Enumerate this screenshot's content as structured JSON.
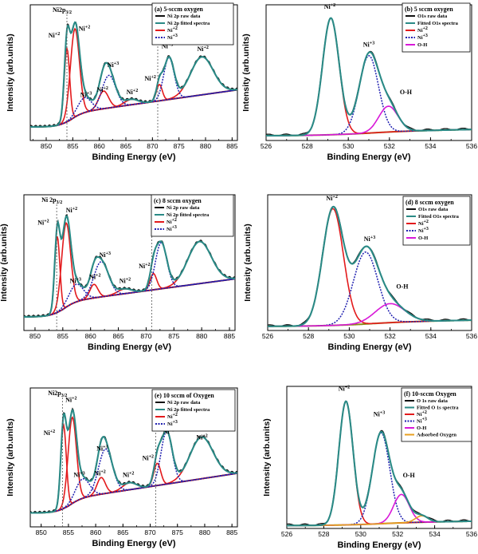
{
  "colors": {
    "raw": "#111111",
    "fit": "#2a8a86",
    "ni2": "#e31a1c",
    "ni3": "#1f1fb0",
    "oh": "#d818d8",
    "bg": "#8c8a1a",
    "ads": "#e8a020"
  },
  "chart_data": [
    {
      "id": "a",
      "type": "line",
      "kind": "ni",
      "xlabel": "Binding Energy (eV)",
      "ylabel": "Intensity (arb.units)",
      "xlim": [
        847,
        886
      ],
      "ylim": [
        0,
        10
      ],
      "ticks": [
        850,
        855,
        860,
        865,
        870,
        875,
        880,
        885
      ],
      "legend_title": "(a) 5-sccm oxygen",
      "legend": [
        "Ni 2p raw data",
        "Ni 2p fitted spectra",
        "Ni+2",
        "Ni+3"
      ],
      "marker_labels": [
        {
          "x": 853.9,
          "text": "Ni2p3/2"
        },
        {
          "x": 871.0,
          "text": "Ni2p1/2"
        }
      ],
      "annotations": [
        {
          "x": 851.5,
          "y": 7.6,
          "text": "Ni+2"
        },
        {
          "x": 857.2,
          "y": 8.1,
          "text": "Ni+2"
        },
        {
          "x": 857.5,
          "y": 3.2,
          "text": "Ni+3"
        },
        {
          "x": 860.6,
          "y": 3.6,
          "text": "Ni+2"
        },
        {
          "x": 862.6,
          "y": 5.4,
          "text": "Ni+3"
        },
        {
          "x": 866.2,
          "y": 3.4,
          "text": "Ni+2"
        },
        {
          "x": 869.6,
          "y": 4.4,
          "text": "Ni+2"
        },
        {
          "x": 872.8,
          "y": 6.8,
          "text": "Ni+3"
        },
        {
          "x": 879.5,
          "y": 6.6,
          "text": "Ni+2"
        }
      ],
      "background": {
        "start": 1.0,
        "step": 1.0,
        "x0": 854.5,
        "slope": 0.055
      },
      "ni2_peaks": [
        {
          "center": 853.9,
          "height": 5.4,
          "fwhm": 1.2
        },
        {
          "center": 855.4,
          "height": 6.5,
          "fwhm": 2.0
        },
        {
          "center": 860.8,
          "height": 1.3,
          "fwhm": 2.2
        },
        {
          "center": 866.0,
          "height": 0.4,
          "fwhm": 3.0
        },
        {
          "center": 871.3,
          "height": 1.2,
          "fwhm": 1.3
        },
        {
          "center": 879.3,
          "height": 2.8,
          "fwhm": 5.0
        }
      ],
      "ni3_peaks": [
        {
          "center": 857.2,
          "height": 1.1,
          "fwhm": 3.0
        },
        {
          "center": 861.8,
          "height": 2.4,
          "fwhm": 3.0
        },
        {
          "center": 873.1,
          "height": 3.1,
          "fwhm": 2.3
        }
      ]
    },
    {
      "id": "b",
      "type": "line",
      "kind": "o",
      "xlabel": "Binding Energy (eV)",
      "ylabel": "Intensity (arb.units)",
      "xlim": [
        526,
        536
      ],
      "ylim": [
        0,
        10
      ],
      "ticks": [
        526,
        528,
        530,
        532,
        534,
        536
      ],
      "legend_title": "(b) 5 sccm oxygen",
      "legend": [
        "O1s raw data",
        "Fitted O1s spectra",
        "Ni+2",
        "Ni+3",
        "O-H"
      ],
      "annotations": [
        {
          "x": 529.1,
          "y": 9.7,
          "text": "Ni+2"
        },
        {
          "x": 531.0,
          "y": 6.9,
          "text": "Ni+3"
        },
        {
          "x": 532.8,
          "y": 3.4,
          "text": "O-H"
        }
      ],
      "background": {
        "start": 0.35,
        "step": 0.3,
        "x0": 530.5,
        "slope": 0.03
      },
      "ni2_peaks": [
        {
          "center": 529.15,
          "height": 8.6,
          "fwhm": 0.95
        }
      ],
      "ni3_peaks": [
        {
          "center": 531.0,
          "height": 5.7,
          "fwhm": 1.1
        }
      ],
      "oh_peaks": [
        {
          "center": 531.95,
          "height": 1.9,
          "fwhm": 1.1
        }
      ]
    },
    {
      "id": "c",
      "type": "line",
      "kind": "ni",
      "xlabel": "Binding Energy (eV)",
      "ylabel": "Intensity (arb.units)",
      "xlim": [
        848,
        886
      ],
      "ylim": [
        0,
        10
      ],
      "ticks": [
        850,
        855,
        860,
        865,
        870,
        875,
        880,
        885
      ],
      "legend_title": "(c) 8 sccm oxygen",
      "legend": [
        "Ni 2p raw data",
        "Ni 2p fitted spectra",
        "Ni+2",
        "Ni+3"
      ],
      "marker_labels": [
        {
          "x": 853.9,
          "text": "Ni 2p3/2"
        },
        {
          "x": 871.0,
          "text": "Ni 2p1/2"
        }
      ],
      "annotations": [
        {
          "x": 851.5,
          "y": 7.8,
          "text": "Ni+2"
        },
        {
          "x": 856.6,
          "y": 8.7,
          "text": "Ni+2"
        },
        {
          "x": 857.3,
          "y": 3.5,
          "text": "Ni+3"
        },
        {
          "x": 860.8,
          "y": 3.8,
          "text": "Ni+2"
        },
        {
          "x": 862.6,
          "y": 5.4,
          "text": "Ni+3"
        },
        {
          "x": 866.2,
          "y": 3.5,
          "text": "Ni+2"
        },
        {
          "x": 869.7,
          "y": 4.6,
          "text": "Ni+2"
        },
        {
          "x": 872.7,
          "y": 7.0,
          "text": "Ni+3"
        },
        {
          "x": 880.0,
          "y": 7.0,
          "text": "Ni+2"
        }
      ],
      "background": {
        "start": 1.0,
        "step": 1.1,
        "x0": 855.0,
        "slope": 0.055
      },
      "ni2_peaks": [
        {
          "center": 854.0,
          "height": 5.6,
          "fwhm": 1.1
        },
        {
          "center": 855.6,
          "height": 6.2,
          "fwhm": 1.9
        },
        {
          "center": 860.6,
          "height": 1.0,
          "fwhm": 1.7
        },
        {
          "center": 866.1,
          "height": 0.35,
          "fwhm": 3.0
        },
        {
          "center": 871.3,
          "height": 1.2,
          "fwhm": 1.4
        },
        {
          "center": 879.6,
          "height": 3.1,
          "fwhm": 5.0
        }
      ],
      "ni3_peaks": [
        {
          "center": 857.4,
          "height": 1.3,
          "fwhm": 3.0
        },
        {
          "center": 861.9,
          "height": 2.6,
          "fwhm": 3.1
        },
        {
          "center": 872.7,
          "height": 3.4,
          "fwhm": 2.4
        }
      ]
    },
    {
      "id": "d",
      "type": "line",
      "kind": "o",
      "xlabel": "Binding Energy (eV)",
      "ylabel": "Intensity (arb.units)",
      "xlim": [
        526,
        536
      ],
      "ylim": [
        0,
        10
      ],
      "ticks": [
        526,
        528,
        530,
        532,
        534,
        536
      ],
      "legend_title": "(d) 8 sccm oxygen",
      "legend": [
        "O1s raw data",
        "Fitted O1s spectra",
        "Ni+2",
        "Ni+3",
        "O-H"
      ],
      "annotations": [
        {
          "x": 529.15,
          "y": 9.6,
          "text": "Ni+2"
        },
        {
          "x": 531.0,
          "y": 6.6,
          "text": "Ni+3"
        },
        {
          "x": 532.6,
          "y": 3.1,
          "text": "O-H"
        }
      ],
      "background": {
        "start": 0.3,
        "step": 0.3,
        "x0": 530.5,
        "slope": 0.03
      },
      "ni2_peaks": [
        {
          "center": 529.2,
          "height": 8.6,
          "fwhm": 1.2
        }
      ],
      "ni3_peaks": [
        {
          "center": 530.8,
          "height": 5.3,
          "fwhm": 1.4
        }
      ],
      "oh_peaks": [
        {
          "center": 532.0,
          "height": 1.4,
          "fwhm": 1.7
        }
      ]
    },
    {
      "id": "e",
      "type": "line",
      "kind": "ni",
      "xlabel": "Binding Energy (eV)",
      "ylabel": "Intensity (arb.units)",
      "xlim": [
        848,
        886
      ],
      "ylim": [
        0,
        10
      ],
      "ticks": [
        850,
        855,
        860,
        865,
        870,
        875,
        880,
        885
      ],
      "legend_title": "(e) 10 sccm of Oxygen",
      "legend": [
        "Ni 2p raw data",
        "Ni 2p fitted spectra",
        "Ni+2",
        "Ni+3"
      ],
      "marker_labels": [
        {
          "x": 853.9,
          "text": "Ni2p3/2"
        },
        {
          "x": 871.0,
          "text": "Ni2p1/2"
        }
      ],
      "annotations": [
        {
          "x": 851.5,
          "y": 6.6,
          "text": "Ni+2"
        },
        {
          "x": 855.5,
          "y": 9.0,
          "text": "Ni+2"
        },
        {
          "x": 857.0,
          "y": 3.6,
          "text": "Ni+3"
        },
        {
          "x": 860.8,
          "y": 3.7,
          "text": "Ni+2"
        },
        {
          "x": 861.2,
          "y": 5.5,
          "text": "Ni+3"
        },
        {
          "x": 866.0,
          "y": 3.6,
          "text": "Ni+2"
        },
        {
          "x": 869.6,
          "y": 4.8,
          "text": "Ni+2"
        },
        {
          "x": 873.4,
          "y": 6.7,
          "text": "Ni+3"
        },
        {
          "x": 879.5,
          "y": 6.3,
          "text": "Ni+2"
        }
      ],
      "background": {
        "start": 1.0,
        "step": 1.0,
        "x0": 855.0,
        "slope": 0.06
      },
      "ni2_peaks": [
        {
          "center": 854.1,
          "height": 6.0,
          "fwhm": 1.2
        },
        {
          "center": 855.7,
          "height": 6.2,
          "fwhm": 1.8
        },
        {
          "center": 861.0,
          "height": 1.2,
          "fwhm": 1.8
        },
        {
          "center": 866.2,
          "height": 0.5,
          "fwhm": 3.0
        },
        {
          "center": 871.3,
          "height": 1.6,
          "fwhm": 1.5
        },
        {
          "center": 879.4,
          "height": 3.0,
          "fwhm": 5.0
        }
      ],
      "ni3_peaks": [
        {
          "center": 857.6,
          "height": 1.4,
          "fwhm": 3.0
        },
        {
          "center": 861.8,
          "height": 3.2,
          "fwhm": 3.0
        },
        {
          "center": 873.0,
          "height": 3.8,
          "fwhm": 2.4
        }
      ]
    },
    {
      "id": "f",
      "type": "line",
      "kind": "o",
      "xlabel": "Binding Energy (eV)",
      "ylabel": "Intensity (arb.units)",
      "xlim": [
        526,
        536
      ],
      "ylim": [
        0,
        10
      ],
      "ticks": [
        526,
        528,
        530,
        532,
        534,
        536
      ],
      "legend_title": "(f) 10-sccm Oxygen",
      "legend": [
        "O 1s raw data",
        "Fitted O 1s spectra",
        "Ni+2",
        "Ni+3",
        "O-H",
        "Adsorbed Oxygen"
      ],
      "annotations": [
        {
          "x": 529.1,
          "y": 9.7,
          "text": "Ni+2"
        },
        {
          "x": 531.0,
          "y": 7.9,
          "text": "Ni+3"
        },
        {
          "x": 532.6,
          "y": 3.6,
          "text": "O-H"
        }
      ],
      "background": {
        "start": 0.2,
        "step": 0.2,
        "x0": 530.5,
        "slope": 0.02
      },
      "ni2_peaks": [
        {
          "center": 529.2,
          "height": 8.7,
          "fwhm": 0.9
        }
      ],
      "ni3_peaks": [
        {
          "center": 531.1,
          "height": 6.4,
          "fwhm": 1.1
        }
      ],
      "oh_peaks": [
        {
          "center": 532.2,
          "height": 2.0,
          "fwhm": 1.0
        }
      ],
      "ads_peaks": [
        {
          "center": 533.3,
          "height": 0.45,
          "fwhm": 0.8
        }
      ]
    }
  ]
}
